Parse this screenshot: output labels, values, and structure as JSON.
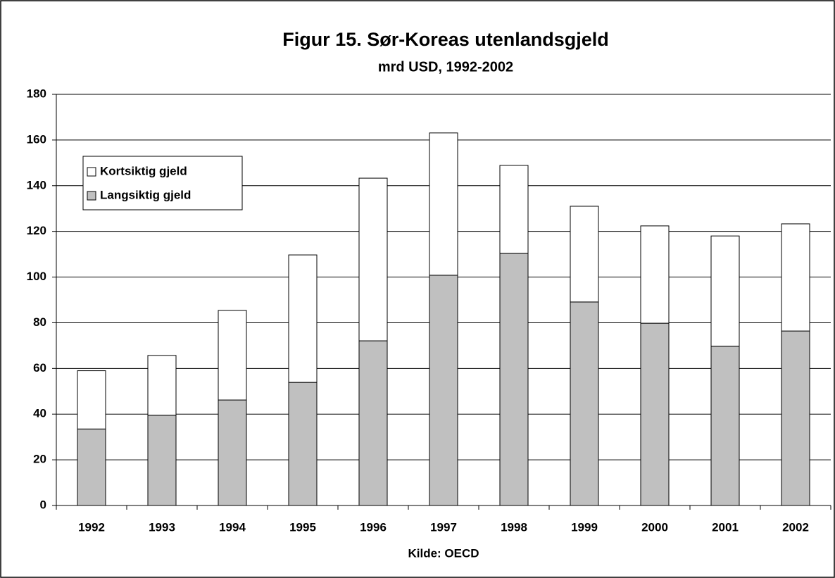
{
  "chart_data": {
    "type": "stacked_bar",
    "title": "Figur 15. Sør-Koreas utenlandsgjeld",
    "subtitle": "mrd USD, 1992-2002",
    "source": "Kilde: OECD",
    "categories": [
      "1992",
      "1993",
      "1994",
      "1995",
      "1996",
      "1997",
      "1998",
      "1999",
      "2000",
      "2001",
      "2002"
    ],
    "series": [
      {
        "name": "Langsiktig gjeld",
        "color": "#c0c0c0",
        "values": [
          33.5,
          39.5,
          46.2,
          53.9,
          72.1,
          100.8,
          110.4,
          89.1,
          79.8,
          69.7,
          76.4
        ]
      },
      {
        "name": "Kortsiktig gjeld",
        "color": "#ffffff",
        "values": [
          25.5,
          26.2,
          39.2,
          55.8,
          71.2,
          62.3,
          38.5,
          41.9,
          42.6,
          48.3,
          46.9
        ]
      }
    ],
    "ylim": [
      0,
      180
    ],
    "yticks": [
      0,
      20,
      40,
      60,
      80,
      100,
      120,
      140,
      160,
      180
    ],
    "grid": true,
    "legend": "upper left"
  }
}
